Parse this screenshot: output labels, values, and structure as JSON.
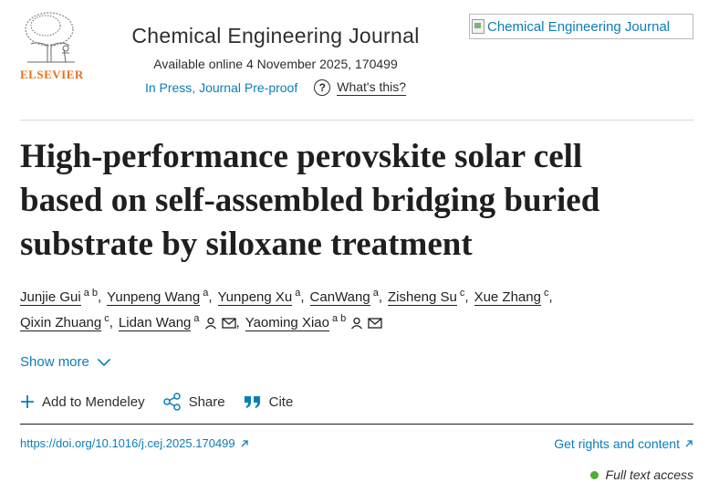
{
  "header": {
    "publisher_logo_text": "ELSEVIER",
    "journal_title": "Chemical Engineering Journal",
    "availability": "Available online 4 November 2025, 170499",
    "status": "In Press, Journal Pre-proof",
    "whats_this": "What's this?",
    "cover_alt": "Chemical Engineering Journal"
  },
  "article": {
    "title_lines": [
      "High-performance perovskite solar cell",
      "based on self-assembled bridging buried",
      "substrate by siloxane treatment"
    ]
  },
  "authors": [
    {
      "name": "Junjie Gui",
      "sup": "a b"
    },
    {
      "name": "Yunpeng Wang",
      "sup": "a"
    },
    {
      "name": "Yunpeng Xu",
      "sup": "a"
    },
    {
      "name": "CanWang",
      "sup": "a"
    },
    {
      "name": "Zisheng Su",
      "sup": "c"
    },
    {
      "name": "Xue Zhang",
      "sup": "c"
    },
    {
      "name": "Qixin Zhuang",
      "sup": "c"
    },
    {
      "name": "Lidan Wang",
      "sup": "a"
    },
    {
      "name": "Yaoming Xiao",
      "sup": "a b"
    }
  ],
  "show_more": "Show more",
  "actions": {
    "mendeley": "Add to Mendeley",
    "share": "Share",
    "cite": "Cite"
  },
  "links": {
    "doi": "https://doi.org/10.1016/j.cej.2025.170499",
    "rights": "Get rights and content"
  },
  "access": "Full text access",
  "colors": {
    "link": "#0c7dbb",
    "elsevier_orange": "#e9711c",
    "access_green": "#4caf3a"
  },
  "icons": [
    "elsevier-tree-icon",
    "question-circle-icon",
    "broken-image-icon",
    "person-icon",
    "envelope-icon",
    "chevron-down-icon",
    "plus-icon",
    "share-icon",
    "quote-icon",
    "external-arrow-icon"
  ]
}
